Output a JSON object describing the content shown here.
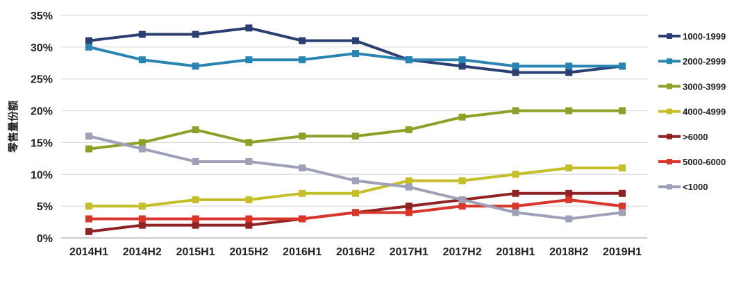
{
  "chart_data": {
    "type": "line",
    "title": "",
    "xlabel": "",
    "ylabel": "零售量份额",
    "categories": [
      "2014H1",
      "2014H2",
      "2015H1",
      "2015H2",
      "2016H1",
      "2016H2",
      "2017H1",
      "2017H2",
      "2018H1",
      "2018H2",
      "2019H1"
    ],
    "ylim": [
      0,
      35
    ],
    "yticks": [
      0,
      5,
      10,
      15,
      20,
      25,
      30,
      35
    ],
    "ytick_labels": [
      "0%",
      "5%",
      "10%",
      "15%",
      "20%",
      "25%",
      "30%",
      "35%"
    ],
    "grid": true,
    "legend_position": "right",
    "series": [
      {
        "name": "1000-1999",
        "color": "#2b3f73",
        "values": [
          31,
          32,
          32,
          33,
          31,
          31,
          28,
          27,
          26,
          26,
          27
        ]
      },
      {
        "name": "2000-2999",
        "color": "#2a84b2",
        "values": [
          30,
          28,
          27,
          28,
          28,
          29,
          28,
          28,
          27,
          27,
          27
        ]
      },
      {
        "name": "3000-3999",
        "color": "#8aa12a",
        "values": [
          14,
          15,
          17,
          15,
          16,
          16,
          17,
          19,
          20,
          20,
          20
        ]
      },
      {
        "name": "4000-4999",
        "color": "#c4be2a",
        "values": [
          5,
          5,
          6,
          6,
          7,
          7,
          9,
          9,
          10,
          11,
          11
        ]
      },
      {
        "name": ">6000",
        "color": "#8e2224",
        "values": [
          1,
          2,
          2,
          2,
          3,
          4,
          5,
          6,
          7,
          7,
          7
        ]
      },
      {
        "name": "5000-6000",
        "color": "#d8362b",
        "values": [
          3,
          3,
          3,
          3,
          3,
          4,
          4,
          5,
          5,
          6,
          5
        ]
      },
      {
        "name": "<1000",
        "color": "#9ea0b8",
        "values": [
          16,
          14,
          12,
          12,
          11,
          9,
          8,
          6,
          4,
          3,
          4
        ]
      }
    ]
  }
}
